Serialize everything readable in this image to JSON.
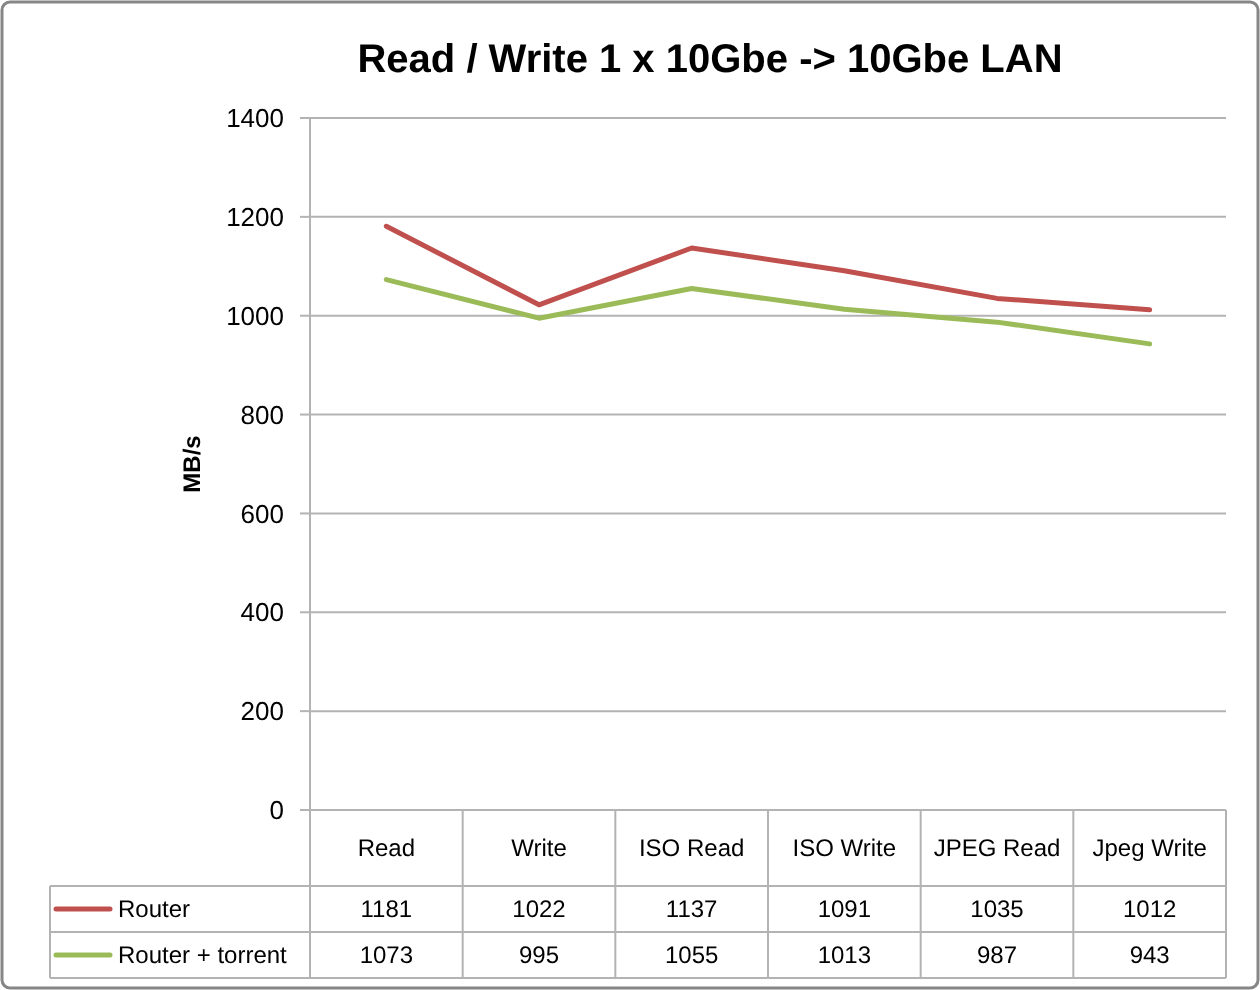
{
  "chart_data": {
    "type": "line",
    "title": "Read / Write 1 x 10Gbe -> 10Gbe LAN",
    "ylabel": "MB/s",
    "categories": [
      "Read",
      "Write",
      "ISO Read",
      "ISO Write",
      "JPEG Read",
      "Jpeg Write"
    ],
    "series": [
      {
        "name": "Router",
        "color": "#c0504d",
        "values": [
          1181,
          1022,
          1137,
          1091,
          1035,
          1012
        ]
      },
      {
        "name": "Router + torrent",
        "color": "#9bbb59",
        "values": [
          1073,
          995,
          1055,
          1013,
          987,
          943
        ]
      }
    ],
    "ylim": [
      0,
      1400
    ],
    "yticks": [
      0,
      200,
      400,
      600,
      800,
      1000,
      1200,
      1400
    ],
    "grid": "y",
    "legend": "bottom left",
    "data_labels": true,
    "marker": "none",
    "line_style": "solid"
  }
}
